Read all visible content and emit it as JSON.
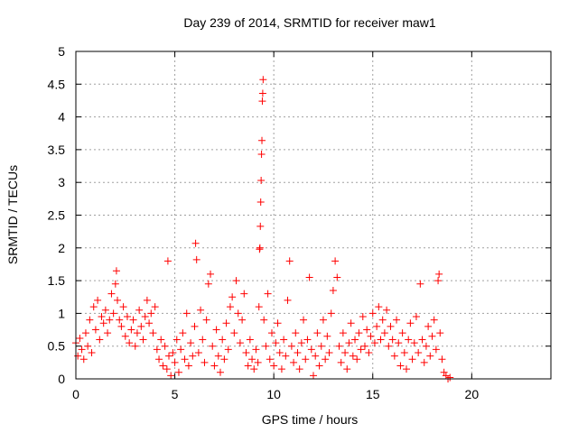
{
  "chart_data": {
    "type": "scatter",
    "title": "Day 239 of 2014, SRMTID for receiver maw1",
    "xlabel": "GPS time / hours",
    "ylabel": "SRMTID / TECUs",
    "xlim": [
      0,
      24
    ],
    "ylim": [
      0,
      5
    ],
    "xticks": [
      0,
      5,
      10,
      15,
      20
    ],
    "yticks": [
      0,
      0.5,
      1,
      1.5,
      2,
      2.5,
      3,
      3.5,
      4,
      4.5,
      5
    ],
    "xtick_labels": [
      "0",
      "5",
      "10",
      "15",
      "20"
    ],
    "ytick_labels": [
      "0",
      "0.5",
      "1",
      "1.5",
      "2",
      "2.5",
      "3",
      "3.5",
      "4",
      "4.5",
      "5"
    ],
    "grid": true,
    "marker": "+",
    "marker_color": "#ff0000",
    "series": [
      {
        "name": "maw1",
        "points": [
          [
            0.0,
            0.55
          ],
          [
            0.1,
            0.35
          ],
          [
            0.2,
            0.62
          ],
          [
            0.3,
            0.45
          ],
          [
            0.4,
            0.3
          ],
          [
            0.5,
            0.7
          ],
          [
            0.6,
            0.5
          ],
          [
            0.7,
            0.9
          ],
          [
            0.8,
            0.4
          ],
          [
            0.9,
            1.1
          ],
          [
            1.0,
            0.75
          ],
          [
            1.1,
            1.2
          ],
          [
            1.2,
            0.6
          ],
          [
            1.3,
            0.95
          ],
          [
            1.4,
            0.85
          ],
          [
            1.5,
            1.05
          ],
          [
            1.6,
            0.7
          ],
          [
            1.7,
            0.9
          ],
          [
            1.8,
            1.3
          ],
          [
            1.9,
            1.0
          ],
          [
            2.0,
            1.45
          ],
          [
            2.05,
            1.65
          ],
          [
            2.1,
            1.2
          ],
          [
            2.2,
            0.9
          ],
          [
            2.3,
            0.8
          ],
          [
            2.4,
            1.1
          ],
          [
            2.5,
            0.65
          ],
          [
            2.6,
            0.95
          ],
          [
            2.7,
            0.55
          ],
          [
            2.8,
            0.75
          ],
          [
            2.9,
            0.9
          ],
          [
            3.0,
            0.5
          ],
          [
            3.1,
            0.7
          ],
          [
            3.2,
            1.05
          ],
          [
            3.3,
            0.8
          ],
          [
            3.4,
            0.6
          ],
          [
            3.5,
            0.95
          ],
          [
            3.6,
            1.2
          ],
          [
            3.7,
            0.85
          ],
          [
            3.8,
            1.0
          ],
          [
            3.9,
            0.7
          ],
          [
            4.0,
            1.1
          ],
          [
            4.1,
            0.45
          ],
          [
            4.2,
            0.3
          ],
          [
            4.3,
            0.6
          ],
          [
            4.4,
            0.2
          ],
          [
            4.5,
            0.5
          ],
          [
            4.6,
            0.15
          ],
          [
            4.65,
            1.8
          ],
          [
            4.7,
            0.35
          ],
          [
            4.8,
            0.05
          ],
          [
            4.9,
            0.4
          ],
          [
            5.0,
            0.25
          ],
          [
            5.1,
            0.6
          ],
          [
            5.2,
            0.1
          ],
          [
            5.3,
            0.45
          ],
          [
            5.4,
            0.7
          ],
          [
            5.5,
            0.3
          ],
          [
            5.6,
            1.0
          ],
          [
            5.7,
            0.2
          ],
          [
            5.8,
            0.55
          ],
          [
            5.9,
            0.35
          ],
          [
            6.0,
            0.8
          ],
          [
            6.05,
            2.07
          ],
          [
            6.1,
            1.82
          ],
          [
            6.2,
            0.4
          ],
          [
            6.3,
            1.05
          ],
          [
            6.4,
            0.6
          ],
          [
            6.5,
            0.25
          ],
          [
            6.6,
            0.9
          ],
          [
            6.7,
            1.45
          ],
          [
            6.8,
            1.6
          ],
          [
            6.9,
            0.5
          ],
          [
            7.0,
            0.2
          ],
          [
            7.1,
            0.75
          ],
          [
            7.2,
            0.35
          ],
          [
            7.3,
            0.1
          ],
          [
            7.4,
            0.6
          ],
          [
            7.5,
            0.3
          ],
          [
            7.6,
            0.85
          ],
          [
            7.7,
            0.45
          ],
          [
            7.8,
            1.1
          ],
          [
            7.9,
            1.25
          ],
          [
            8.0,
            0.7
          ],
          [
            8.1,
            1.5
          ],
          [
            8.2,
            1.0
          ],
          [
            8.3,
            0.55
          ],
          [
            8.4,
            0.9
          ],
          [
            8.5,
            1.3
          ],
          [
            8.6,
            0.4
          ],
          [
            8.7,
            0.2
          ],
          [
            8.8,
            0.6
          ],
          [
            8.9,
            0.3
          ],
          [
            9.0,
            0.15
          ],
          [
            9.1,
            0.45
          ],
          [
            9.2,
            0.25
          ],
          [
            9.25,
            1.1
          ],
          [
            9.28,
            1.98
          ],
          [
            9.3,
            2.0
          ],
          [
            9.32,
            2.33
          ],
          [
            9.34,
            2.7
          ],
          [
            9.36,
            3.03
          ],
          [
            9.38,
            3.43
          ],
          [
            9.4,
            3.64
          ],
          [
            9.42,
            4.24
          ],
          [
            9.44,
            4.36
          ],
          [
            9.46,
            4.57
          ],
          [
            9.5,
            0.9
          ],
          [
            9.6,
            0.5
          ],
          [
            9.7,
            1.3
          ],
          [
            9.8,
            0.3
          ],
          [
            9.9,
            0.7
          ],
          [
            10.0,
            0.2
          ],
          [
            10.1,
            0.55
          ],
          [
            10.2,
            0.85
          ],
          [
            10.3,
            0.4
          ],
          [
            10.4,
            0.15
          ],
          [
            10.5,
            0.6
          ],
          [
            10.6,
            0.35
          ],
          [
            10.7,
            1.2
          ],
          [
            10.8,
            1.8
          ],
          [
            10.9,
            0.5
          ],
          [
            11.0,
            0.25
          ],
          [
            11.1,
            0.7
          ],
          [
            11.2,
            0.4
          ],
          [
            11.3,
            0.15
          ],
          [
            11.4,
            0.55
          ],
          [
            11.5,
            0.9
          ],
          [
            11.6,
            0.3
          ],
          [
            11.7,
            0.6
          ],
          [
            11.8,
            1.55
          ],
          [
            11.9,
            0.45
          ],
          [
            12.0,
            0.05
          ],
          [
            12.1,
            0.35
          ],
          [
            12.2,
            0.7
          ],
          [
            12.3,
            0.2
          ],
          [
            12.4,
            0.5
          ],
          [
            12.5,
            0.9
          ],
          [
            12.6,
            0.3
          ],
          [
            12.7,
            0.65
          ],
          [
            12.8,
            0.4
          ],
          [
            12.9,
            1.0
          ],
          [
            13.0,
            1.35
          ],
          [
            13.1,
            1.8
          ],
          [
            13.2,
            1.55
          ],
          [
            13.3,
            0.5
          ],
          [
            13.4,
            0.25
          ],
          [
            13.5,
            0.7
          ],
          [
            13.6,
            0.4
          ],
          [
            13.7,
            0.15
          ],
          [
            13.8,
            0.55
          ],
          [
            13.9,
            0.85
          ],
          [
            14.0,
            0.35
          ],
          [
            14.1,
            0.6
          ],
          [
            14.2,
            0.3
          ],
          [
            14.3,
            0.7
          ],
          [
            14.4,
            0.45
          ],
          [
            14.5,
            0.95
          ],
          [
            14.6,
            0.5
          ],
          [
            14.7,
            0.75
          ],
          [
            14.8,
            0.4
          ],
          [
            14.9,
            0.65
          ],
          [
            15.0,
            1.0
          ],
          [
            15.1,
            0.55
          ],
          [
            15.2,
            0.8
          ],
          [
            15.3,
            1.1
          ],
          [
            15.4,
            0.6
          ],
          [
            15.5,
            0.9
          ],
          [
            15.6,
            0.7
          ],
          [
            15.7,
            1.05
          ],
          [
            15.8,
            0.5
          ],
          [
            15.9,
            0.8
          ],
          [
            16.0,
            0.6
          ],
          [
            16.1,
            0.35
          ],
          [
            16.2,
            0.9
          ],
          [
            16.3,
            0.55
          ],
          [
            16.4,
            0.2
          ],
          [
            16.5,
            0.7
          ],
          [
            16.6,
            0.4
          ],
          [
            16.7,
            0.15
          ],
          [
            16.8,
            0.6
          ],
          [
            16.9,
            0.85
          ],
          [
            17.0,
            0.3
          ],
          [
            17.1,
            0.55
          ],
          [
            17.2,
            0.95
          ],
          [
            17.3,
            0.4
          ],
          [
            17.4,
            1.45
          ],
          [
            17.5,
            0.6
          ],
          [
            17.6,
            0.25
          ],
          [
            17.7,
            0.5
          ],
          [
            17.8,
            0.8
          ],
          [
            17.9,
            0.35
          ],
          [
            18.0,
            0.65
          ],
          [
            18.1,
            0.9
          ],
          [
            18.2,
            0.45
          ],
          [
            18.3,
            1.5
          ],
          [
            18.35,
            1.6
          ],
          [
            18.4,
            0.7
          ],
          [
            18.5,
            0.3
          ],
          [
            18.6,
            0.1
          ],
          [
            18.7,
            0.05
          ],
          [
            18.8,
            0.0
          ],
          [
            18.9,
            0.02
          ]
        ]
      }
    ]
  }
}
